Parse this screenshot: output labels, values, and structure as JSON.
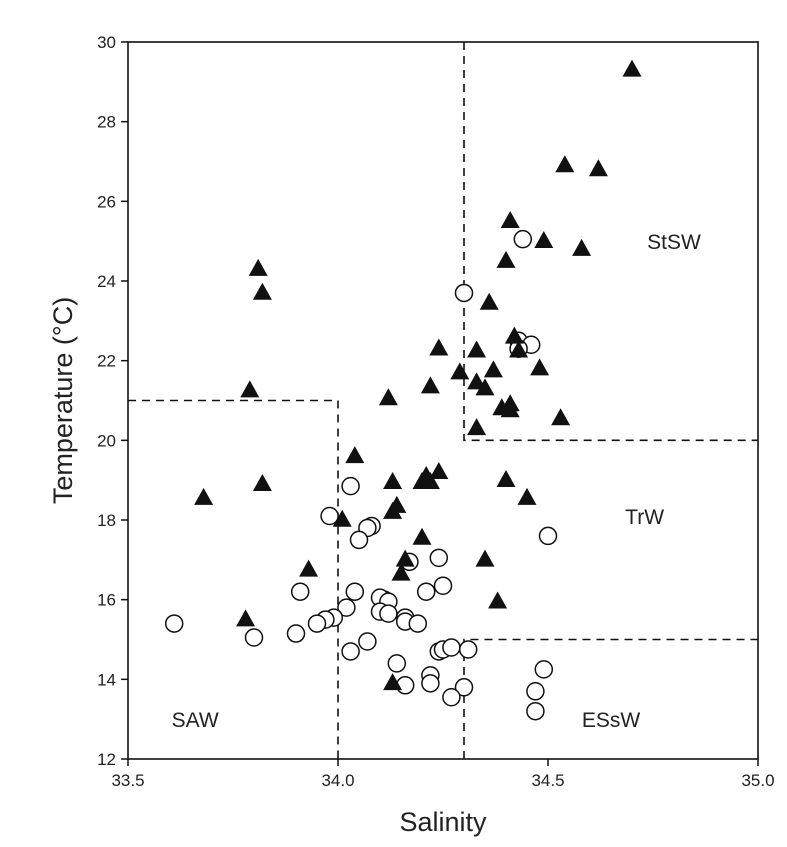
{
  "chart_data": {
    "type": "scatter",
    "title": "",
    "xlabel": "Salinity",
    "ylabel": "Temperature (°C)",
    "xlim": [
      33.5,
      35.0
    ],
    "ylim": [
      12,
      30
    ],
    "xticks": [
      "33.5",
      "34.0",
      "34.5",
      "35.0"
    ],
    "yticks": [
      "12",
      "14",
      "16",
      "18",
      "20",
      "22",
      "24",
      "26",
      "28",
      "30"
    ],
    "grid": false,
    "legend": "none",
    "regions": [
      {
        "label": "SAW",
        "x": 33.66,
        "y": 12.8
      },
      {
        "label": "StSW",
        "x": 34.8,
        "y": 24.8
      },
      {
        "label": "TrW",
        "x": 34.73,
        "y": 17.9
      },
      {
        "label": "ESsW",
        "x": 34.65,
        "y": 12.8
      }
    ],
    "boundaries": [
      {
        "points": [
          [
            33.5,
            21.0
          ],
          [
            34.0,
            21.0
          ],
          [
            34.0,
            12.0
          ]
        ]
      },
      {
        "points": [
          [
            34.3,
            30.0
          ],
          [
            34.3,
            20.0
          ],
          [
            35.0,
            20.0
          ]
        ]
      },
      {
        "points": [
          [
            34.3,
            12.0
          ],
          [
            34.3,
            15.0
          ],
          [
            35.0,
            15.0
          ]
        ]
      }
    ],
    "series": [
      {
        "marker": "triangle",
        "color": "#111111",
        "points": [
          [
            34.7,
            29.3
          ],
          [
            34.54,
            26.9
          ],
          [
            34.62,
            26.8
          ],
          [
            34.41,
            25.5
          ],
          [
            34.49,
            25.0
          ],
          [
            34.58,
            24.8
          ],
          [
            34.4,
            24.5
          ],
          [
            33.81,
            24.3
          ],
          [
            33.82,
            23.7
          ],
          [
            34.36,
            23.45
          ],
          [
            34.42,
            22.6
          ],
          [
            34.43,
            22.25
          ],
          [
            34.24,
            22.3
          ],
          [
            34.33,
            22.25
          ],
          [
            34.37,
            21.75
          ],
          [
            34.48,
            21.8
          ],
          [
            34.29,
            21.7
          ],
          [
            34.33,
            21.45
          ],
          [
            34.35,
            21.3
          ],
          [
            34.22,
            21.35
          ],
          [
            33.79,
            21.25
          ],
          [
            34.12,
            21.05
          ],
          [
            34.39,
            20.8
          ],
          [
            34.41,
            20.9
          ],
          [
            34.41,
            20.75
          ],
          [
            34.53,
            20.55
          ],
          [
            34.33,
            20.3
          ],
          [
            34.04,
            19.6
          ],
          [
            34.21,
            19.1
          ],
          [
            34.24,
            19.2
          ],
          [
            34.4,
            19.0
          ],
          [
            34.2,
            18.95
          ],
          [
            34.22,
            18.95
          ],
          [
            34.13,
            18.95
          ],
          [
            33.82,
            18.9
          ],
          [
            33.68,
            18.55
          ],
          [
            34.45,
            18.55
          ],
          [
            34.14,
            18.35
          ],
          [
            34.13,
            18.2
          ],
          [
            34.01,
            18.0
          ],
          [
            34.2,
            17.55
          ],
          [
            34.16,
            17.0
          ],
          [
            34.35,
            17.0
          ],
          [
            33.93,
            16.75
          ],
          [
            34.15,
            16.65
          ],
          [
            34.38,
            15.95
          ],
          [
            33.78,
            15.5
          ],
          [
            34.13,
            13.9
          ]
        ]
      },
      {
        "marker": "circle",
        "color": "#111111",
        "points": [
          [
            34.44,
            25.05
          ],
          [
            34.3,
            23.7
          ],
          [
            34.43,
            22.5
          ],
          [
            34.46,
            22.4
          ],
          [
            34.43,
            22.3
          ],
          [
            34.03,
            18.85
          ],
          [
            33.98,
            18.1
          ],
          [
            34.08,
            17.85
          ],
          [
            34.07,
            17.8
          ],
          [
            34.05,
            17.5
          ],
          [
            34.5,
            17.6
          ],
          [
            34.24,
            17.05
          ],
          [
            34.17,
            16.95
          ],
          [
            34.25,
            16.35
          ],
          [
            33.91,
            16.2
          ],
          [
            34.04,
            16.2
          ],
          [
            34.21,
            16.2
          ],
          [
            34.11,
            16.0
          ],
          [
            34.1,
            16.05
          ],
          [
            34.12,
            15.95
          ],
          [
            34.02,
            15.8
          ],
          [
            34.1,
            15.7
          ],
          [
            34.12,
            15.65
          ],
          [
            34.16,
            15.55
          ],
          [
            33.99,
            15.55
          ],
          [
            33.97,
            15.5
          ],
          [
            33.95,
            15.4
          ],
          [
            34.16,
            15.45
          ],
          [
            34.19,
            15.4
          ],
          [
            33.61,
            15.4
          ],
          [
            33.9,
            15.15
          ],
          [
            33.8,
            15.05
          ],
          [
            34.07,
            14.95
          ],
          [
            34.03,
            14.7
          ],
          [
            34.24,
            14.7
          ],
          [
            34.25,
            14.75
          ],
          [
            34.27,
            14.8
          ],
          [
            34.31,
            14.75
          ],
          [
            34.14,
            14.4
          ],
          [
            34.49,
            14.25
          ],
          [
            34.22,
            14.1
          ],
          [
            34.22,
            13.9
          ],
          [
            34.16,
            13.85
          ],
          [
            34.3,
            13.8
          ],
          [
            34.47,
            13.7
          ],
          [
            34.27,
            13.55
          ],
          [
            34.47,
            13.2
          ]
        ]
      }
    ]
  }
}
